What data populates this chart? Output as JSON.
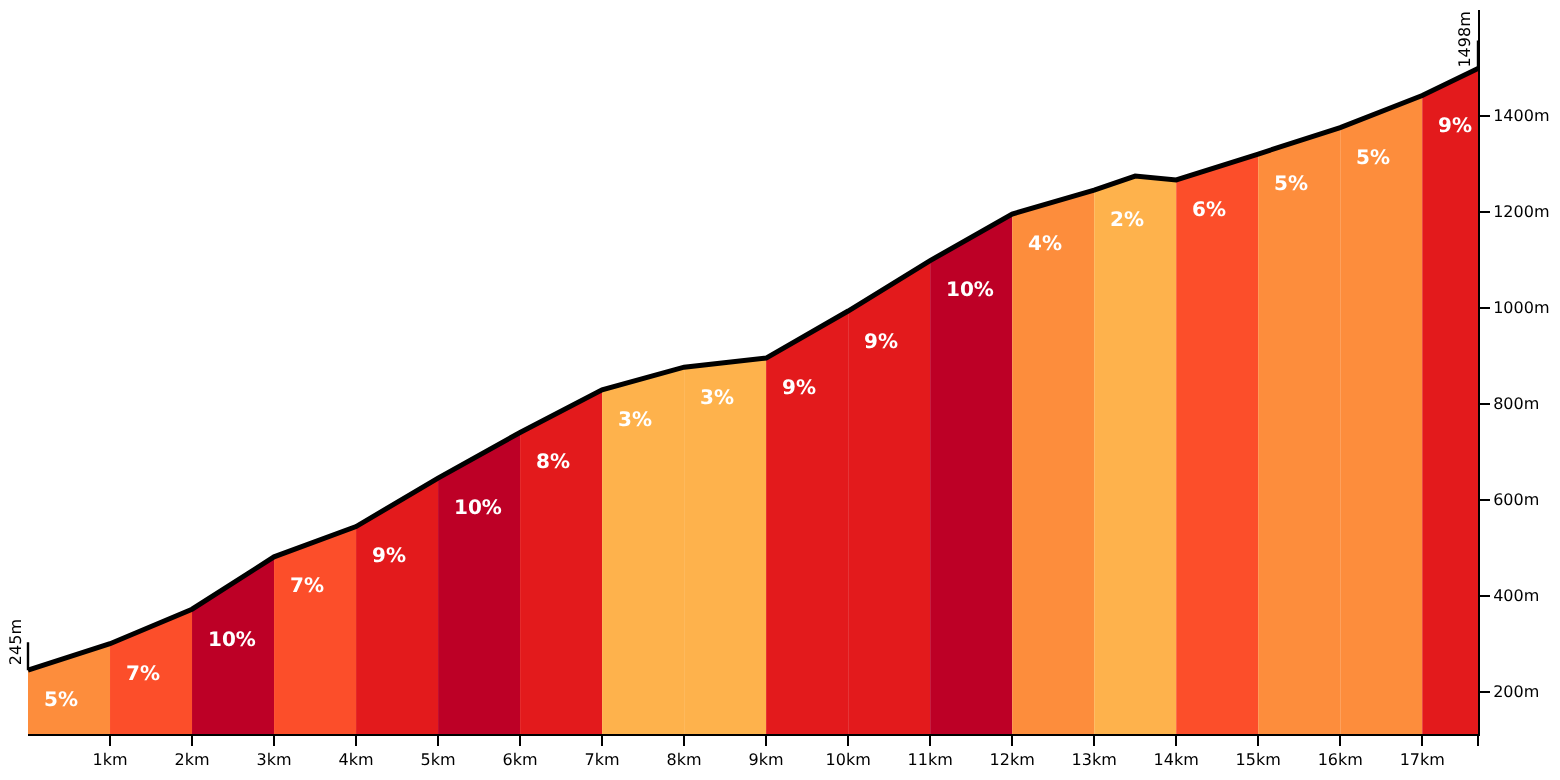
{
  "chart_data": {
    "type": "area",
    "xlim": [
      0,
      17.68
    ],
    "ylim": [
      112,
      1620
    ],
    "xticks": [
      {
        "value": 1,
        "label": "1km"
      },
      {
        "value": 2,
        "label": "2km"
      },
      {
        "value": 3,
        "label": "3km"
      },
      {
        "value": 4,
        "label": "4km"
      },
      {
        "value": 5,
        "label": "5km"
      },
      {
        "value": 6,
        "label": "6km"
      },
      {
        "value": 7,
        "label": "7km"
      },
      {
        "value": 8,
        "label": "8km"
      },
      {
        "value": 9,
        "label": "9km"
      },
      {
        "value": 10,
        "label": "10km"
      },
      {
        "value": 11,
        "label": "11km"
      },
      {
        "value": 12,
        "label": "12km"
      },
      {
        "value": 13,
        "label": "13km"
      },
      {
        "value": 14,
        "label": "14km"
      },
      {
        "value": 15,
        "label": "15km"
      },
      {
        "value": 16,
        "label": "16km"
      },
      {
        "value": 17,
        "label": "17km"
      },
      {
        "value": 17.68,
        "label": null
      }
    ],
    "yticks": [
      {
        "value": 200,
        "label": "200m"
      },
      {
        "value": 400,
        "label": "400m"
      },
      {
        "value": 600,
        "label": "600m"
      },
      {
        "value": 800,
        "label": "800m"
      },
      {
        "value": 1000,
        "label": "1000m"
      },
      {
        "value": 1200,
        "label": "1200m"
      },
      {
        "value": 1400,
        "label": "1400m"
      }
    ],
    "legend": false,
    "series": [
      {
        "color": "#fd8d3c",
        "x": [
          0,
          1
        ],
        "values": [
          245,
          300
        ]
      },
      {
        "color": "#fc4e2a",
        "x": [
          1,
          2
        ],
        "values": [
          300,
          372
        ]
      },
      {
        "color": "#bd0026",
        "x": [
          2,
          3
        ],
        "values": [
          372,
          481
        ]
      },
      {
        "color": "#fc4e2a",
        "x": [
          3,
          4
        ],
        "values": [
          481,
          544
        ]
      },
      {
        "color": "#e31a1c",
        "x": [
          4,
          5
        ],
        "values": [
          544,
          645
        ]
      },
      {
        "color": "#bd0026",
        "x": [
          5,
          6
        ],
        "values": [
          645,
          740
        ]
      },
      {
        "color": "#e31a1c",
        "x": [
          6,
          7
        ],
        "values": [
          740,
          829
        ]
      },
      {
        "color": "#feb24c",
        "x": [
          7,
          8
        ],
        "values": [
          829,
          876
        ]
      },
      {
        "color": "#feb24c",
        "x": [
          8,
          9
        ],
        "values": [
          876,
          895
        ]
      },
      {
        "color": "#e31a1c",
        "x": [
          9,
          10
        ],
        "values": [
          895,
          993
        ]
      },
      {
        "color": "#e31a1c",
        "x": [
          10,
          11
        ],
        "values": [
          993,
          1098
        ]
      },
      {
        "color": "#bd0026",
        "x": [
          11,
          12
        ],
        "values": [
          1098,
          1195
        ]
      },
      {
        "color": "#fd8d3c",
        "x": [
          12,
          13
        ],
        "values": [
          1195,
          1245
        ]
      },
      {
        "color": "#feb24c",
        "x": [
          13,
          13.5,
          14
        ],
        "values": [
          1245,
          1274,
          1266
        ]
      },
      {
        "color": "#fc4e2a",
        "x": [
          14,
          15
        ],
        "values": [
          1266,
          1320
        ]
      },
      {
        "color": "#fd8d3c",
        "x": [
          15,
          16
        ],
        "values": [
          1320,
          1375
        ]
      },
      {
        "color": "#fd8d3c",
        "x": [
          16,
          17
        ],
        "values": [
          1375,
          1442
        ]
      },
      {
        "color": "#e31a1c",
        "x": [
          17,
          17.68
        ],
        "values": [
          1442,
          1498
        ]
      },
      {
        "type": "line",
        "color": "#000000",
        "x": [
          0,
          1,
          2,
          3,
          4,
          5,
          6,
          7,
          8,
          9,
          10,
          11,
          12,
          13,
          13.5,
          14,
          15,
          16,
          17,
          17.68
        ],
        "values": [
          245,
          300,
          372,
          481,
          544,
          645,
          740,
          829,
          876,
          895,
          993,
          1098,
          1195,
          1245,
          1274,
          1266,
          1320,
          1375,
          1442,
          1498
        ]
      }
    ],
    "annotations": [
      {
        "text": "245m",
        "x": 0,
        "y": 245
      },
      {
        "text": "1498m",
        "x": 17.68,
        "y": 1498
      },
      "5%",
      "7%",
      "10%",
      "7%",
      "9%",
      "10%",
      "8%",
      "3%",
      "3%",
      "9%",
      "9%",
      "10%",
      "4%",
      "2%",
      "6%",
      "5%",
      "5%",
      "9%"
    ]
  }
}
